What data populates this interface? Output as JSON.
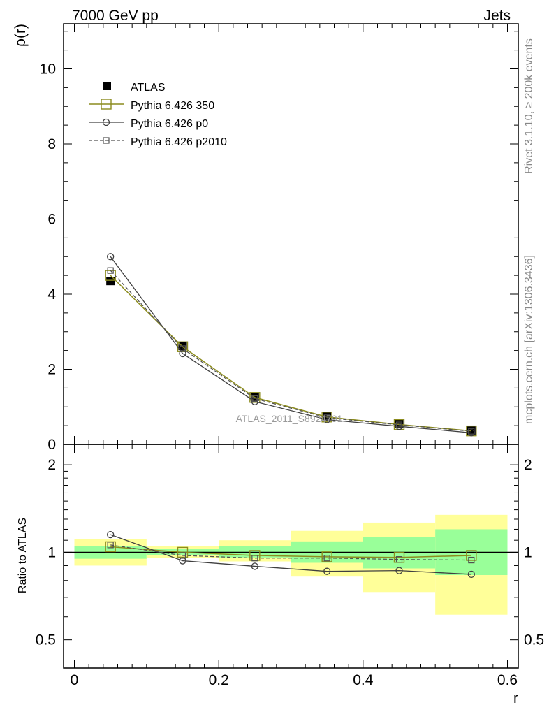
{
  "header": {
    "left_title": "7000 GeV pp",
    "right_title": "Jets"
  },
  "side_text": {
    "rivet": "Rivet 3.1.10, ≥ 200k events",
    "mcplots": "mcplots.cern.ch [arXiv:1306.3436]"
  },
  "watermark": "ATLAS_2011_S8924791",
  "colors": {
    "data": "#000000",
    "p350": "#8c8c1e",
    "p0": "#404040",
    "p2010": "#505050",
    "band_inner": "#99ff99",
    "band_outer": "#ffff99"
  },
  "chart_data": [
    {
      "type": "line",
      "title": "",
      "xlabel": "",
      "ylabel": "ρ(r)",
      "xlim": [
        -0.015,
        0.615
      ],
      "ylim": [
        0,
        11.2
      ],
      "x_ticks": [
        0,
        0.2,
        0.4,
        0.6
      ],
      "y_ticks": [
        0,
        2,
        4,
        6,
        8,
        10
      ],
      "y_tick_labels": [
        "0",
        "2",
        "4",
        "6",
        "8",
        "10"
      ],
      "x": [
        0.05,
        0.15,
        0.25,
        0.35,
        0.45,
        0.55
      ],
      "series": [
        {
          "name": "ATLAS",
          "marker": "filled-square",
          "values": [
            4.35,
            2.62,
            1.27,
            0.75,
            0.55,
            0.37
          ]
        },
        {
          "name": "Pythia 6.426 350",
          "marker": "open-square",
          "line": "solid",
          "values": [
            4.5,
            2.6,
            1.25,
            0.73,
            0.53,
            0.36
          ]
        },
        {
          "name": "Pythia 6.426 p0",
          "marker": "open-circle",
          "line": "solid",
          "values": [
            5.0,
            2.42,
            1.14,
            0.66,
            0.48,
            0.31
          ]
        },
        {
          "name": "Pythia 6.426 p2010",
          "marker": "small-open-square",
          "line": "dashed",
          "values": [
            4.63,
            2.55,
            1.22,
            0.71,
            0.52,
            0.35
          ]
        }
      ],
      "legend_position": "top-left"
    },
    {
      "type": "line",
      "title": "",
      "xlabel": "r",
      "ylabel": "Ratio to ATLAS",
      "xlim": [
        -0.015,
        0.615
      ],
      "ylim": [
        0.4,
        2.35
      ],
      "y_scale": "log",
      "x_ticks": [
        0,
        0.2,
        0.4,
        0.6
      ],
      "x_tick_labels": [
        "0",
        "0.2",
        "0.4",
        "0.6"
      ],
      "y_ticks": [
        0.5,
        1,
        2
      ],
      "y_tick_labels": [
        "0.5",
        "1",
        "2"
      ],
      "reference_line": 1,
      "x": [
        0.05,
        0.15,
        0.25,
        0.35,
        0.45,
        0.55
      ],
      "bins": [
        [
          0,
          0.1
        ],
        [
          0.1,
          0.2
        ],
        [
          0.2,
          0.3
        ],
        [
          0.3,
          0.4
        ],
        [
          0.4,
          0.5
        ],
        [
          0.5,
          0.6
        ]
      ],
      "band_inner": [
        [
          0.95,
          1.05
        ],
        [
          0.975,
          1.03
        ],
        [
          0.96,
          1.05
        ],
        [
          0.92,
          1.09
        ],
        [
          0.88,
          1.13
        ],
        [
          0.835,
          1.2
        ]
      ],
      "band_outer": [
        [
          0.9,
          1.11
        ],
        [
          0.955,
          1.05
        ],
        [
          0.93,
          1.1
        ],
        [
          0.825,
          1.185
        ],
        [
          0.73,
          1.265
        ],
        [
          0.61,
          1.345
        ]
      ],
      "series": [
        {
          "name": "Pythia 6.426 350",
          "marker": "open-square",
          "line": "solid",
          "values": [
            1.045,
            1.0,
            0.975,
            0.965,
            0.96,
            0.975
          ]
        },
        {
          "name": "Pythia 6.426 p0",
          "marker": "open-circle",
          "line": "solid",
          "values": [
            1.15,
            0.935,
            0.895,
            0.86,
            0.865,
            0.84
          ]
        },
        {
          "name": "Pythia 6.426 p2010",
          "marker": "small-open-square",
          "line": "dashed",
          "values": [
            1.06,
            0.975,
            0.955,
            0.955,
            0.945,
            0.94
          ]
        }
      ]
    }
  ]
}
